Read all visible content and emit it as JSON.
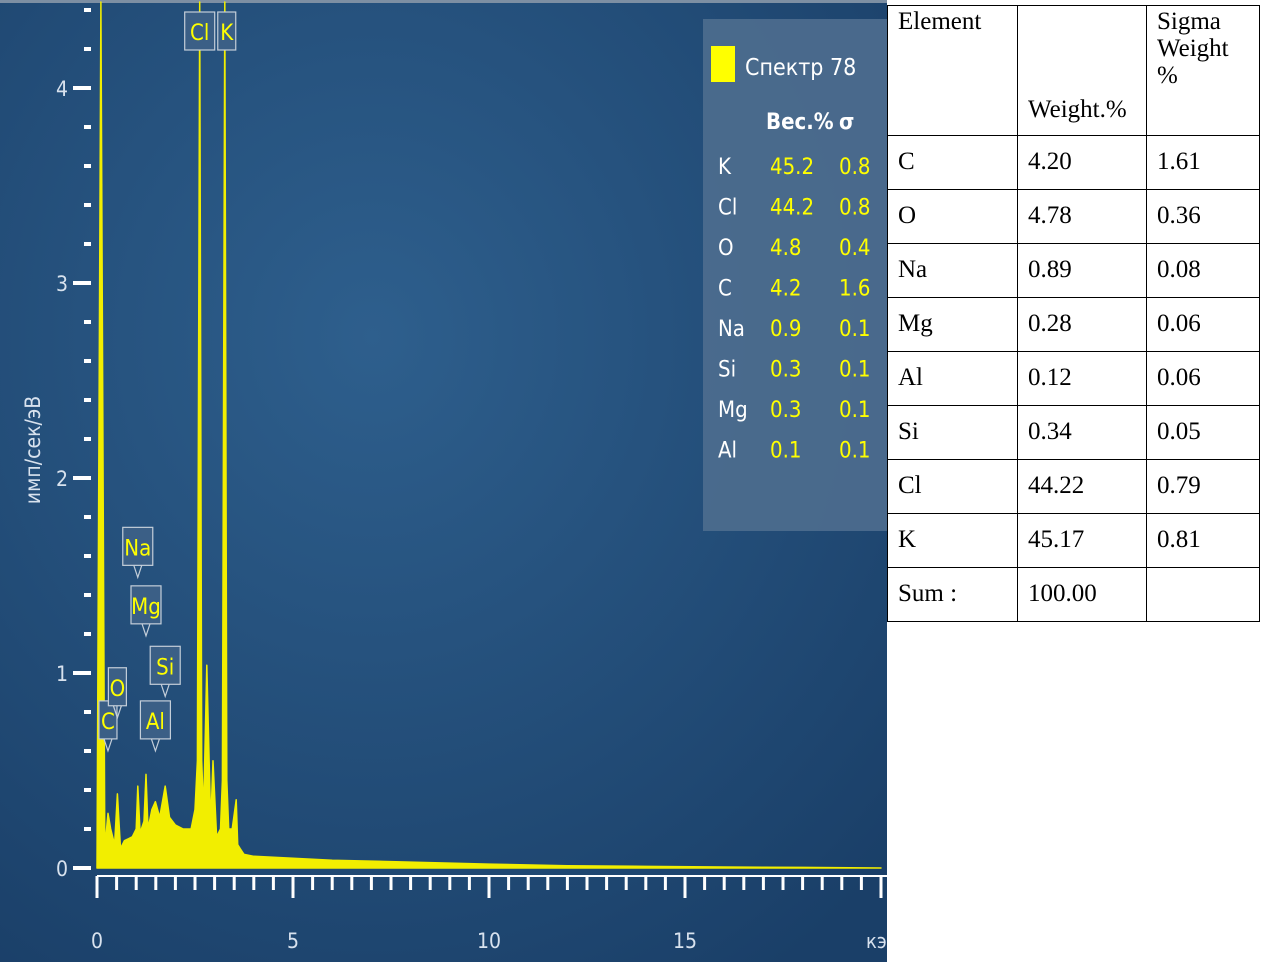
{
  "colors": {
    "background": "#1f4670",
    "background_light": "#2d5e8c",
    "spectrum": "#f2ee00",
    "axis": "#ffffff",
    "legend_box": "#ffff00"
  },
  "chart_data": {
    "type": "area",
    "title": "",
    "xlabel": "кэ",
    "ylabel": "имп/сек/эВ",
    "xlim": [
      0,
      20
    ],
    "ylim": [
      0,
      4.4
    ],
    "x_ticks": [
      "0",
      "5",
      "10",
      "15"
    ],
    "y_ticks": [
      "0",
      "1",
      "2",
      "3",
      "4"
    ],
    "series": [
      {
        "name": "Спектр 78",
        "x": [
          0,
          0.1,
          0.2,
          0.28,
          0.35,
          0.45,
          0.52,
          0.6,
          0.7,
          0.8,
          0.9,
          1.0,
          1.04,
          1.1,
          1.2,
          1.25,
          1.3,
          1.4,
          1.49,
          1.6,
          1.74,
          1.85,
          2.0,
          2.2,
          2.4,
          2.5,
          2.56,
          2.62,
          2.67,
          2.72,
          2.8,
          2.9,
          2.96,
          3.05,
          3.15,
          3.2,
          3.26,
          3.31,
          3.36,
          3.45,
          3.55,
          3.59,
          3.65,
          3.75,
          4.0,
          5.0,
          6.0,
          8.0,
          10.0,
          12.0,
          14.0,
          16.0,
          18.0,
          20.0
        ],
        "values": [
          0.0,
          4.5,
          0.1,
          0.28,
          0.2,
          0.12,
          0.38,
          0.1,
          0.14,
          0.15,
          0.16,
          0.2,
          0.42,
          0.18,
          0.24,
          0.48,
          0.2,
          0.3,
          0.34,
          0.26,
          0.42,
          0.26,
          0.22,
          0.2,
          0.2,
          0.3,
          0.55,
          4.5,
          0.55,
          0.28,
          1.04,
          0.22,
          0.55,
          0.16,
          0.2,
          0.45,
          4.5,
          0.45,
          0.2,
          0.2,
          0.35,
          0.12,
          0.1,
          0.07,
          0.06,
          0.05,
          0.04,
          0.03,
          0.02,
          0.012,
          0.008,
          0.005,
          0.003,
          0.0
        ]
      }
    ],
    "peak_labels": [
      {
        "label": "C",
        "x": 0.28,
        "y": 0.58
      },
      {
        "label": "O",
        "x": 0.52,
        "y": 0.75
      },
      {
        "label": "Na",
        "x": 1.04,
        "y": 1.47
      },
      {
        "label": "Mg",
        "x": 1.25,
        "y": 1.17
      },
      {
        "label": "Al",
        "x": 1.49,
        "y": 0.58
      },
      {
        "label": "Si",
        "x": 1.74,
        "y": 0.86
      },
      {
        "label": "Cl",
        "x": 2.62,
        "y": 4.5
      },
      {
        "label": "K",
        "x": 3.31,
        "y": 4.5
      }
    ],
    "legend": {
      "title": "Спектр 78",
      "columns": [
        "Вес.%",
        "σ"
      ],
      "rows": [
        {
          "el": "K",
          "wt": "45.2",
          "s": "0.8"
        },
        {
          "el": "Cl",
          "wt": "44.2",
          "s": "0.8"
        },
        {
          "el": "O",
          "wt": "4.8",
          "s": "0.4"
        },
        {
          "el": "C",
          "wt": "4.2",
          "s": "1.6"
        },
        {
          "el": "Na",
          "wt": "0.9",
          "s": "0.1"
        },
        {
          "el": "Si",
          "wt": "0.3",
          "s": "0.1"
        },
        {
          "el": "Mg",
          "wt": "0.3",
          "s": "0.1"
        },
        {
          "el": "Al",
          "wt": "0.1",
          "s": "0.1"
        }
      ]
    }
  },
  "table": {
    "headers": [
      "Element",
      "Weight.%",
      "Sigma Weight %"
    ],
    "rows": [
      [
        "C",
        "4.20",
        "1.61"
      ],
      [
        "O",
        "4.78",
        "0.36"
      ],
      [
        "Na",
        "0.89",
        "0.08"
      ],
      [
        "Mg",
        "0.28",
        "0.06"
      ],
      [
        "Al",
        "0.12",
        "0.06"
      ],
      [
        "Si",
        "0.34",
        "0.05"
      ],
      [
        "Cl",
        "44.22",
        "0.79"
      ],
      [
        "K",
        "45.17",
        "0.81"
      ],
      [
        "Sum :",
        "100.00",
        ""
      ]
    ]
  }
}
